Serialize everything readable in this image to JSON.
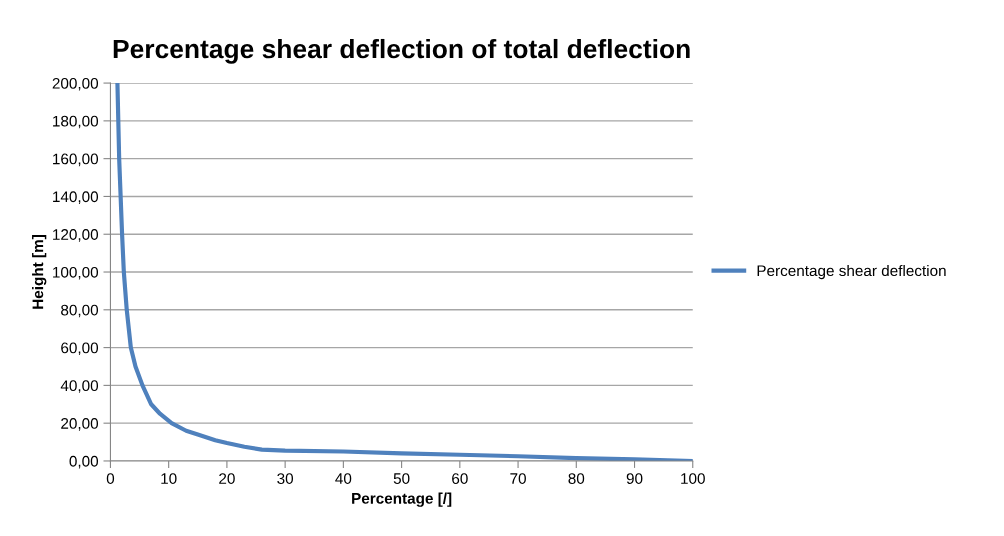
{
  "chart_data": {
    "type": "line",
    "title": "Percentage shear deflection of total deflection",
    "xlabel": "Percentage [/]",
    "ylabel": "Height [m]",
    "series": [
      {
        "name": "Percentage shear deflection",
        "color": "#4f81bd",
        "x": [
          1.2,
          1.5,
          2,
          2.3,
          2.8,
          3.5,
          4.3,
          5.5,
          7,
          8.5,
          10.5,
          13,
          15,
          18,
          20,
          23,
          26,
          30,
          40,
          50,
          60,
          70,
          80,
          90,
          100
        ],
        "values": [
          200,
          160,
          120,
          100,
          80,
          60,
          50,
          40,
          30,
          25,
          20,
          16,
          14,
          11,
          9.5,
          7.5,
          6,
          5.5,
          5,
          4,
          3.3,
          2.5,
          1.5,
          0.8,
          0
        ]
      }
    ],
    "xlim": [
      0,
      100
    ],
    "xticks": [
      0,
      10,
      20,
      30,
      40,
      50,
      60,
      70,
      80,
      90,
      100
    ],
    "ylim": [
      0,
      200
    ],
    "yticks": [
      {
        "value": 0,
        "label": "0,00"
      },
      {
        "value": 20,
        "label": "20,00"
      },
      {
        "value": 40,
        "label": "40,00"
      },
      {
        "value": 60,
        "label": "60,00"
      },
      {
        "value": 80,
        "label": "80,00"
      },
      {
        "value": 100,
        "label": "100,00"
      },
      {
        "value": 120,
        "label": "120,00"
      },
      {
        "value": 140,
        "label": "140,00"
      },
      {
        "value": 160,
        "label": "160,00"
      },
      {
        "value": 180,
        "label": "180,00"
      },
      {
        "value": 200,
        "label": "200,00"
      }
    ],
    "grid": "y",
    "legend": "right",
    "marker": "none",
    "line_style": "solid"
  }
}
